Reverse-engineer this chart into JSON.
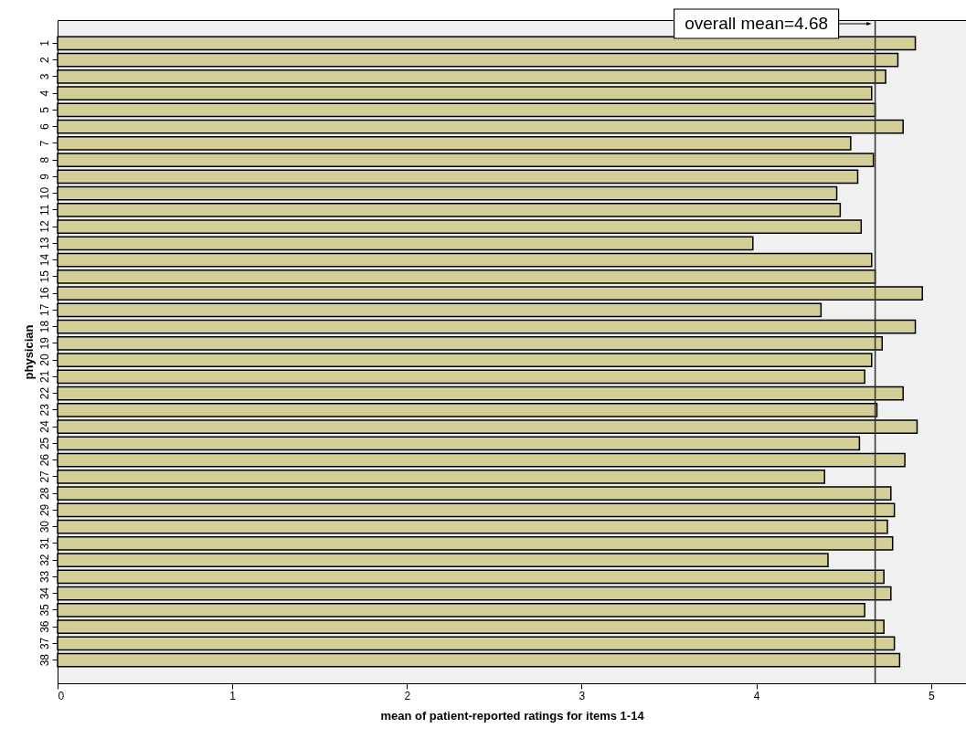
{
  "chart_data": {
    "type": "bar",
    "orientation": "horizontal",
    "xlabel": "mean of patient-reported ratings for items 1-14",
    "ylabel": "physician",
    "categories": [
      "1",
      "2",
      "3",
      "4",
      "5",
      "6",
      "7",
      "8",
      "9",
      "10",
      "11",
      "12",
      "13",
      "14",
      "15",
      "16",
      "17",
      "18",
      "19",
      "20",
      "21",
      "22",
      "23",
      "24",
      "25",
      "26",
      "27",
      "28",
      "29",
      "30",
      "31",
      "32",
      "33",
      "34",
      "35",
      "36",
      "37",
      "38"
    ],
    "values": [
      4.91,
      4.81,
      4.74,
      4.66,
      4.68,
      4.84,
      4.54,
      4.67,
      4.58,
      4.46,
      4.48,
      4.6,
      3.98,
      4.66,
      4.68,
      4.95,
      4.37,
      4.91,
      4.72,
      4.66,
      4.62,
      4.84,
      4.69,
      4.92,
      4.59,
      4.85,
      4.39,
      4.77,
      4.79,
      4.75,
      4.78,
      4.41,
      4.73,
      4.77,
      4.62,
      4.73,
      4.79,
      4.82
    ],
    "color": "#d4cf98",
    "xlim": [
      0,
      5.2
    ],
    "xticks": [
      0,
      1,
      2,
      3,
      4,
      5
    ],
    "grid": false,
    "ref_lines": [
      {
        "axis": "x",
        "value": 4.68,
        "label": "overall mean=4.68",
        "color": "#333333"
      }
    ]
  }
}
